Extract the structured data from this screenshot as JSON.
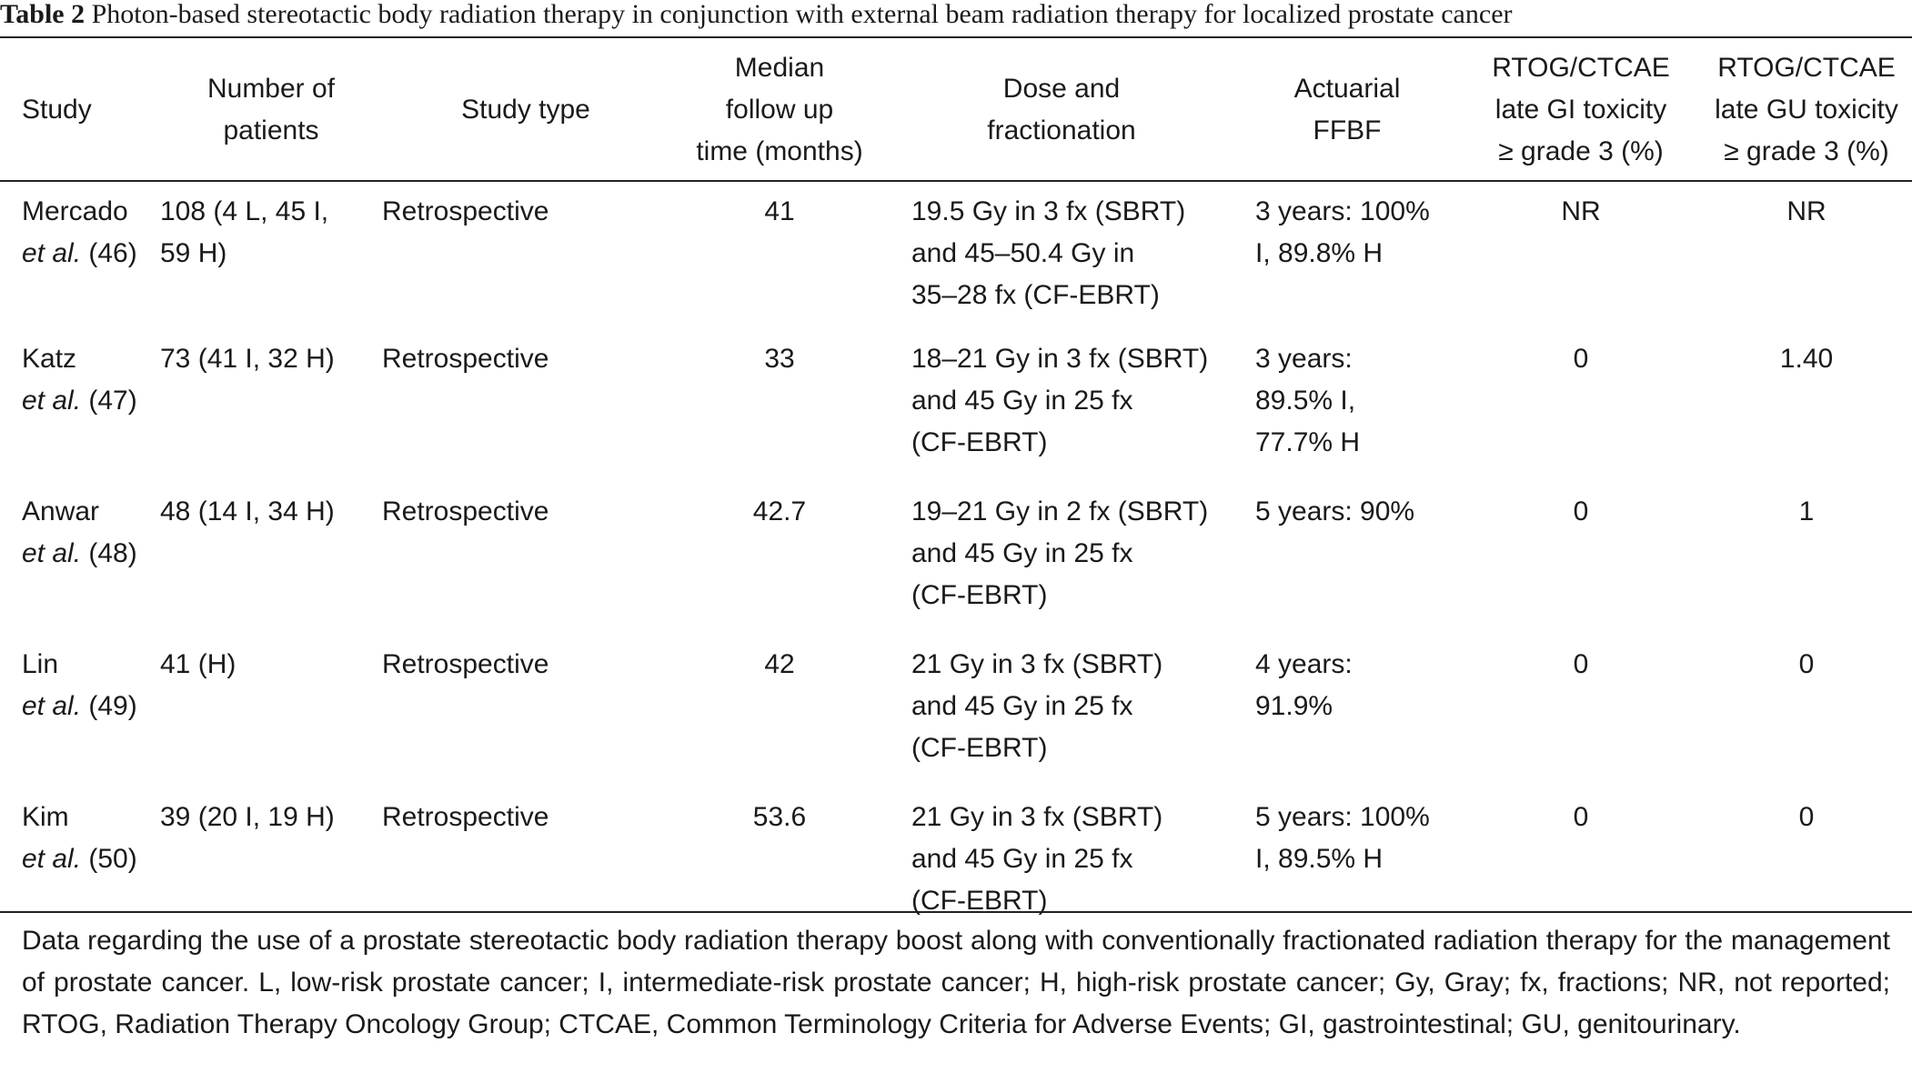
{
  "caption": {
    "label": "Table 2",
    "title": "Photon-based stereotactic body radiation therapy in conjunction with external beam radiation therapy for localized prostate cancer"
  },
  "headers": {
    "study": [
      "Study"
    ],
    "patients": [
      "Number of",
      "patients"
    ],
    "study_type": [
      "Study type"
    ],
    "followup": [
      "Median",
      "follow up",
      "time (months)"
    ],
    "dose": [
      "Dose and",
      "fractionation"
    ],
    "ffbf": [
      "Actuarial",
      "FFBF"
    ],
    "gi": [
      "RTOG/CTCAE",
      "late GI toxicity",
      "≥ grade 3 (%)"
    ],
    "gu": [
      "RTOG/CTCAE",
      "late GU toxicity",
      "≥ grade 3 (%)"
    ]
  },
  "rows": [
    {
      "author": "Mercado",
      "etal": "et al.",
      "ref": " (46)",
      "patients": [
        "108 (4 L, 45 I,",
        "59 H)"
      ],
      "study_type": "Retrospective",
      "followup": "41",
      "dose": [
        "19.5 Gy in 3 fx (SBRT)",
        "and 45–50.4 Gy in",
        "35–28 fx (CF-EBRT)"
      ],
      "ffbf": [
        "3 years: 100%",
        "I, 89.8% H"
      ],
      "gi": "NR",
      "gu": "NR"
    },
    {
      "author": "Katz",
      "etal": "et al.",
      "ref": " (47)",
      "patients": [
        "73 (41 I, 32 H)"
      ],
      "study_type": "Retrospective",
      "followup": "33",
      "dose": [
        "18–21 Gy in 3 fx (SBRT)",
        "and 45 Gy in 25 fx",
        "(CF-EBRT)"
      ],
      "ffbf": [
        "3 years:",
        "89.5% I,",
        "77.7% H"
      ],
      "gi": "0",
      "gu": "1.40"
    },
    {
      "author": "Anwar",
      "etal": "et al.",
      "ref": " (48)",
      "patients": [
        "48 (14 I, 34 H)"
      ],
      "study_type": "Retrospective",
      "followup": "42.7",
      "dose": [
        "19–21 Gy in 2 fx (SBRT)",
        "and 45 Gy in 25 fx",
        "(CF-EBRT)"
      ],
      "ffbf": [
        "5 years: 90%"
      ],
      "gi": "0",
      "gu": "1"
    },
    {
      "author": "Lin",
      "etal": "et al.",
      "ref": " (49)",
      "patients": [
        "41 (H)"
      ],
      "study_type": "Retrospective",
      "followup": "42",
      "dose": [
        "21 Gy in 3 fx (SBRT)",
        "and 45 Gy in 25 fx",
        "(CF-EBRT)"
      ],
      "ffbf": [
        "4 years:",
        "91.9%"
      ],
      "gi": "0",
      "gu": "0"
    },
    {
      "author": "Kim",
      "etal": "et al.",
      "ref": " (50)",
      "patients": [
        "39 (20 I, 19 H)"
      ],
      "study_type": "Retrospective",
      "followup": "53.6",
      "dose": [
        "21 Gy in 3 fx (SBRT)",
        "and 45 Gy in 25 fx",
        "(CF-EBRT)"
      ],
      "ffbf": [
        "5 years: 100%",
        "I, 89.5% H"
      ],
      "gi": "0",
      "gu": "0"
    }
  ],
  "footnote": "Data regarding the use of a prostate stereotactic body radiation therapy boost along with conventionally fractionated radiation therapy for the management of prostate cancer. L, low-risk prostate cancer; I, intermediate-risk prostate cancer; H, high-risk prostate cancer; Gy, Gray; fx, fractions; NR, not reported; RTOG, Radiation Therapy Oncology Group; CTCAE, Common Terminology Criteria for Adverse Events; GI, gastrointestinal; GU, genitourinary."
}
